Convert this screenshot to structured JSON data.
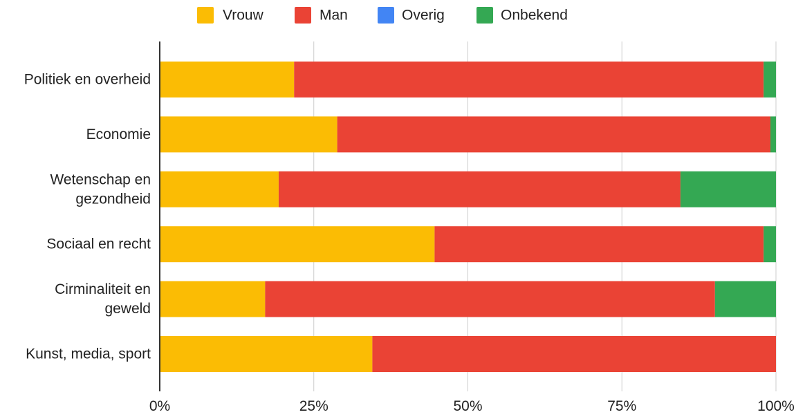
{
  "chart_data": {
    "type": "bar",
    "orientation": "horizontal",
    "stacked": "percent",
    "categories": [
      [
        "Politiek en overheid"
      ],
      [
        "Economie"
      ],
      [
        "Wetenschap en",
        "gezondheid"
      ],
      [
        "Sociaal en recht"
      ],
      [
        "Cirminaliteit en",
        "geweld"
      ],
      [
        "Kunst, media, sport"
      ]
    ],
    "series": [
      {
        "name": "Vrouw",
        "color": "#fbbc04",
        "values": [
          21.8,
          28.8,
          19.3,
          44.6,
          17.1,
          34.5
        ]
      },
      {
        "name": "Man",
        "color": "#ea4335",
        "values": [
          76.2,
          70.3,
          65.2,
          53.4,
          73.0,
          65.5
        ]
      },
      {
        "name": "Overig",
        "color": "#4285f4",
        "values": [
          0,
          0,
          0,
          0,
          0,
          0
        ]
      },
      {
        "name": "Onbekend",
        "color": "#34a853",
        "values": [
          2.0,
          0.9,
          15.5,
          2.0,
          9.9,
          0
        ]
      }
    ],
    "x_ticks": [
      "0%",
      "25%",
      "50%",
      "75%",
      "100%"
    ],
    "xlim": [
      0,
      100
    ],
    "legend": "top-center",
    "grid": true
  }
}
